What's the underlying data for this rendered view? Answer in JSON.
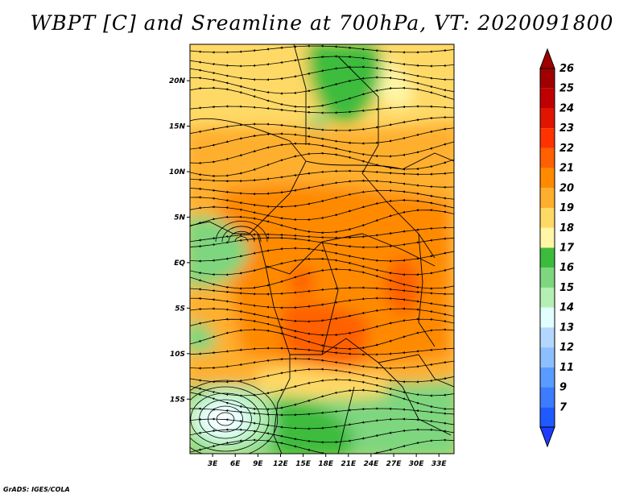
{
  "title": "WBPT [C] and Sreamline at 700hPa, VT: 2020091800",
  "credit": "GrADS: IGES/COLA",
  "map": {
    "lat_range": [
      -21,
      24
    ],
    "lon_range": [
      0,
      35
    ],
    "lat_ticks": [
      {
        "value": 20,
        "label": "20N"
      },
      {
        "value": 15,
        "label": "15N"
      },
      {
        "value": 10,
        "label": "10N"
      },
      {
        "value": 5,
        "label": "5N"
      },
      {
        "value": 0,
        "label": "EQ"
      },
      {
        "value": -5,
        "label": "5S"
      },
      {
        "value": -10,
        "label": "10S"
      },
      {
        "value": -15,
        "label": "15S"
      }
    ],
    "lon_ticks": [
      {
        "value": 3,
        "label": "3E"
      },
      {
        "value": 6,
        "label": "6E"
      },
      {
        "value": 9,
        "label": "9E"
      },
      {
        "value": 12,
        "label": "12E"
      },
      {
        "value": 15,
        "label": "15E"
      },
      {
        "value": 18,
        "label": "18E"
      },
      {
        "value": 21,
        "label": "21E"
      },
      {
        "value": 24,
        "label": "24E"
      },
      {
        "value": 27,
        "label": "27E"
      },
      {
        "value": 30,
        "label": "30E"
      },
      {
        "value": 33,
        "label": "33E"
      }
    ],
    "regions": [
      {
        "name": "warm-orange-belt",
        "lon": [
          0,
          35
        ],
        "lat": [
          -14,
          17
        ],
        "value": 21
      },
      {
        "name": "peak-congo",
        "lon": [
          27.5,
          30
        ],
        "lat": [
          -4,
          1
        ],
        "value": 23
      },
      {
        "name": "peak-angola",
        "lon": [
          15,
          19
        ],
        "lat": [
          -10,
          -6
        ],
        "value": 23
      },
      {
        "name": "green-sahara-north",
        "lon": [
          17,
          24
        ],
        "lat": [
          18,
          24
        ],
        "value": 17
      },
      {
        "name": "green-south-coast",
        "lon": [
          0,
          35
        ],
        "lat": [
          -21,
          -15
        ],
        "value": 17
      },
      {
        "name": "green-gulf-guinea",
        "lon": [
          0,
          7
        ],
        "lat": [
          -3,
          6
        ],
        "value": 17
      },
      {
        "name": "cool-southwest",
        "lon": [
          1,
          9
        ],
        "lat": [
          -20,
          -15
        ],
        "value": 15
      }
    ]
  },
  "colorbar": {
    "levels": [
      {
        "label": "26",
        "color": "#a00000"
      },
      {
        "label": "25",
        "color": "#c00000"
      },
      {
        "label": "24",
        "color": "#e11400"
      },
      {
        "label": "23",
        "color": "#ff3200"
      },
      {
        "label": "22",
        "color": "#ff6000"
      },
      {
        "label": "21",
        "color": "#ff8a00"
      },
      {
        "label": "20",
        "color": "#ffaf2d"
      },
      {
        "label": "19",
        "color": "#ffd966"
      },
      {
        "label": "18",
        "color": "#fff6a6"
      },
      {
        "label": "17",
        "color": "#3cbc3d"
      },
      {
        "label": "16",
        "color": "#7ed67e"
      },
      {
        "label": "15",
        "color": "#b4f0b4"
      },
      {
        "label": "14",
        "color": "#e1ffff"
      },
      {
        "label": "13",
        "color": "#b4d7ff"
      },
      {
        "label": "12",
        "color": "#8cbfff"
      },
      {
        "label": "11",
        "color": "#5a9bff"
      },
      {
        "label": "9",
        "color": "#3d7bff"
      },
      {
        "label": "7",
        "color": "#1e5aff"
      }
    ],
    "top_color": "#a00000",
    "bottom_color": "#1e3cff"
  }
}
